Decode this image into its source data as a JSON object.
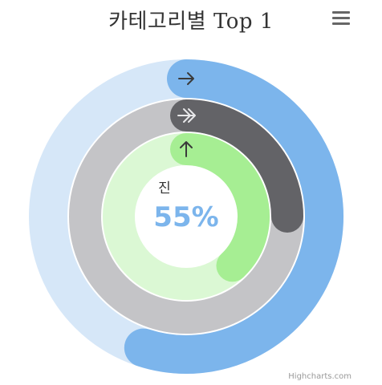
{
  "title": "카테고리별 Top 1",
  "credits": "Highcharts.com",
  "menu": {
    "icon": "hamburger-menu-icon"
  },
  "chart_data": {
    "type": "solidgauge",
    "title": "카테고리별 Top 1",
    "series": [
      {
        "name": "",
        "value": 55,
        "icon": "arrow-right-icon",
        "color": "#7cb5ec",
        "track_color": "#d6e7f8"
      },
      {
        "name": "",
        "value": 25,
        "icon": "double-arrow-right-icon",
        "color": "#636367",
        "track_color": "#c4c4c7"
      },
      {
        "name": "",
        "value": 38,
        "icon": "arrow-up-icon",
        "color": "#a6ee93",
        "track_color": "#dbf8d4"
      }
    ],
    "center": {
      "label": "진",
      "value_text": "55%",
      "value_color": "#7cb5ec"
    },
    "ylim": [
      0,
      100
    ]
  }
}
